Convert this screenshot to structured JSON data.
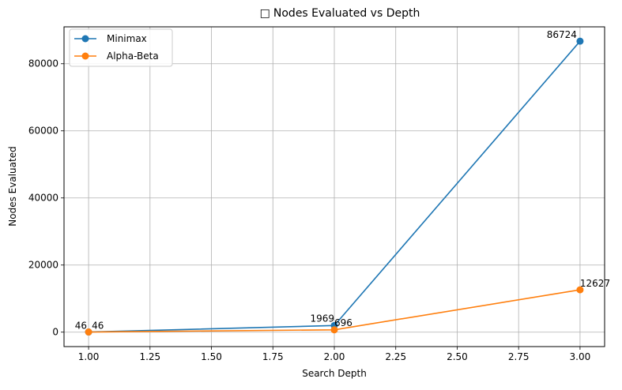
{
  "chart_data": {
    "type": "line",
    "title_icon": "□",
    "title": "Nodes Evaluated vs Depth",
    "xlabel": "Search Depth",
    "ylabel": "Nodes Evaluated",
    "xlim": [
      0.9,
      3.1
    ],
    "ylim": [
      -4300,
      91000
    ],
    "xticks": [
      1.0,
      1.25,
      1.5,
      1.75,
      2.0,
      2.25,
      2.5,
      2.75,
      3.0
    ],
    "xtick_labels": [
      "1.00",
      "1.25",
      "1.50",
      "1.75",
      "2.00",
      "2.25",
      "2.50",
      "2.75",
      "3.00"
    ],
    "yticks": [
      0,
      20000,
      40000,
      60000,
      80000
    ],
    "ytick_labels": [
      "0",
      "20000",
      "40000",
      "60000",
      "80000"
    ],
    "grid": true,
    "legend_position": "top-left",
    "series": [
      {
        "name": "Minimax",
        "color": "#1f77b4",
        "x": [
          1,
          2,
          3
        ],
        "values": [
          46,
          1969,
          86724
        ],
        "labels": [
          "46",
          "1969",
          "86724"
        ]
      },
      {
        "name": "Alpha-Beta",
        "color": "#ff7f0e",
        "x": [
          1,
          2,
          3
        ],
        "values": [
          46,
          696,
          12627
        ],
        "labels": [
          "46",
          "696",
          "12627"
        ]
      }
    ]
  }
}
